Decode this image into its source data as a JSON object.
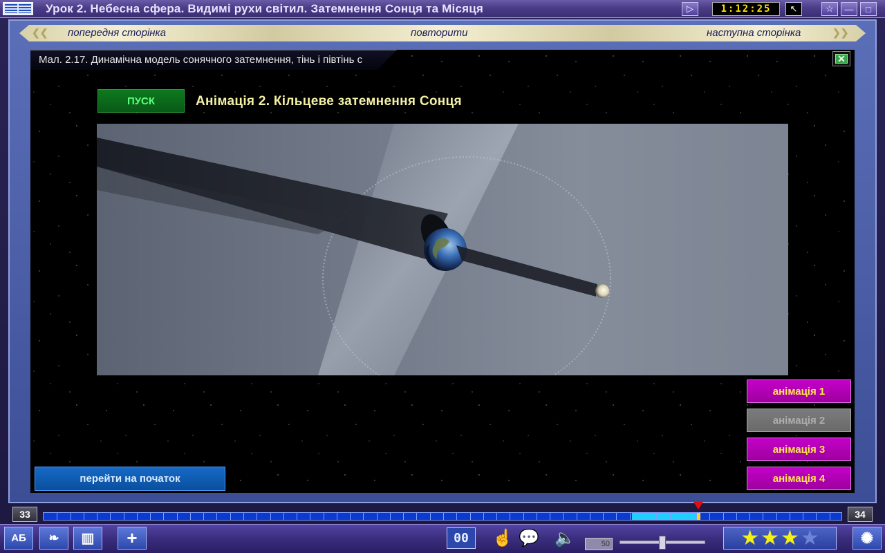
{
  "titlebar": {
    "title": "Урок 2. Небесна сфера. Видимі рухи світил. Затемнення Сонця та Місяця",
    "timer": "1:12:25"
  },
  "nav": {
    "prev": "попередня сторінка",
    "repeat": "повторити",
    "next": "наступна сторінка"
  },
  "caption": "Мал. 2.17. Динамічна модель сонячного затемнення, тінь і півтінь с",
  "run_label": "ПУСК",
  "animation_title": "Анімація 2. Кільцеве затемнення Сонця",
  "side_buttons": [
    {
      "label": "анімація 1",
      "state": "active"
    },
    {
      "label": "анімація 2",
      "state": "disabled"
    },
    {
      "label": "анімація 3",
      "state": "active"
    },
    {
      "label": "анімація 4",
      "state": "active"
    }
  ],
  "home_label": "перейти на початок",
  "pager": {
    "current": "33",
    "next": "34",
    "progress_percent": 82
  },
  "bottom": {
    "counter": "00",
    "volume": "50",
    "rating": {
      "filled": 3,
      "total": 4
    }
  },
  "colors": {
    "run_green": "#0c7a1e",
    "anim_magenta": "#c400c8",
    "anim_text_yellow": "#ffe94c",
    "title_yellow": "#f4f0a4",
    "progress_blue": "#0a3ad0"
  }
}
